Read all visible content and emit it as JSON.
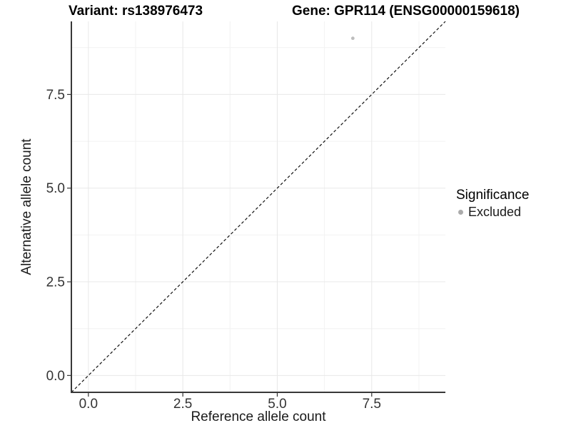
{
  "titles": {
    "left": "Variant: rs138976473",
    "right": "Gene: GPR114 (ENSG00000159618)"
  },
  "axes": {
    "x": {
      "label": "Reference allele count",
      "tick_labels": [
        "0.0",
        "2.5",
        "5.0",
        "7.5"
      ]
    },
    "y": {
      "label": "Alternative allele count",
      "tick_labels": [
        "0.0",
        "2.5",
        "5.0",
        "7.5"
      ]
    }
  },
  "legend": {
    "title": "Significance",
    "items": [
      {
        "label": "Excluded",
        "marker_color": "#ababab"
      }
    ]
  },
  "chart_data": {
    "type": "scatter",
    "title": "Variant: rs138976473 | Gene: GPR114 (ENSG00000159618)",
    "xlabel": "Reference allele count",
    "ylabel": "Alternative allele count",
    "xlim": [
      -0.45,
      9.45
    ],
    "ylim": [
      -0.45,
      9.45
    ],
    "x_major_ticks": [
      0,
      2.5,
      5,
      7.5
    ],
    "y_major_ticks": [
      0,
      2.5,
      5,
      7.5
    ],
    "x_minor_ticks": [
      1.25,
      3.75,
      6.25,
      8.75
    ],
    "y_minor_ticks": [
      1.25,
      3.75,
      6.25,
      8.75
    ],
    "x_tick_labels": [
      "0.0",
      "2.5",
      "5.0",
      "7.5"
    ],
    "y_tick_labels": [
      "0.0",
      "2.5",
      "5.0",
      "7.5"
    ],
    "grid": "major+minor",
    "legend_position": "right",
    "legend_title": "Significance",
    "series": [
      {
        "name": "Excluded",
        "marker_color": "#bdbdbd",
        "points": [
          {
            "x": 7,
            "y": 9
          }
        ]
      }
    ],
    "reference_line": {
      "kind": "identity",
      "slope": 1,
      "intercept": 0,
      "line_style": "dashed",
      "color": "#111111"
    }
  },
  "colors": {
    "background": "#ffffff",
    "axis_line": "#383838",
    "tick_mark": "#333333",
    "tick_label": "#333333",
    "grid_major": "#e8e8e8",
    "grid_minor": "#f2f2f2",
    "point": "#bdbdbd",
    "legend_marker": "#ababab",
    "dashed_line": "#111111"
  }
}
